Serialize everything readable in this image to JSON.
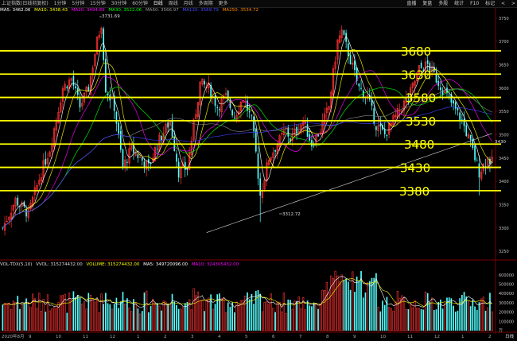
{
  "toolbar": {
    "title": "上证指数(日线前复权)",
    "periods": [
      "1分钟",
      "5分钟",
      "15分钟",
      "30分钟",
      "60分钟",
      "日线",
      "周线",
      "月线",
      "多周期",
      "更多"
    ],
    "active_period": "日线",
    "right_buttons": [
      "直播",
      "复盘",
      "多股",
      "统计",
      "F10",
      "标记"
    ],
    "window_controls": [
      "<",
      ">"
    ]
  },
  "legend": {
    "ma5": "MA5: 3462.06",
    "ma10": "MA10: 3438.43",
    "ma20": "MA20: 3494.89",
    "ma30": "MA30: 3522.06",
    "ma60": "MA60: 3566.97",
    "ma120": "MA120: 3569.79",
    "ma250": "MA250: 3534.72"
  },
  "vol_legend": {
    "name": "VOL-TDX(5,10)",
    "vvol": "VVOL: 315274432.00",
    "vol": "VOLUME: 315274432.00",
    "ma5": "MA5: 349720096.00",
    "ma10": "MA10: 324305432.00"
  },
  "price_annotations": {
    "high": "3731.69",
    "low": "3312.72"
  },
  "current_price_tag": "3430",
  "level_labels": [
    "3680",
    "3630",
    "3580",
    "3530",
    "3480",
    "3430",
    "3380"
  ],
  "price_axis": [
    "3750",
    "3700",
    "3650",
    "3600",
    "3550",
    "3500",
    "3450",
    "3400",
    "3350",
    "3300",
    "3250"
  ],
  "volume_axis": [
    "600000",
    "500000",
    "400000",
    "300000",
    "200000",
    "100000",
    "万"
  ],
  "date_axis": [
    "2020年8月",
    "9",
    "10",
    "11",
    "12",
    "1",
    "2",
    "3",
    "4",
    "5",
    "6",
    "7",
    "8",
    "9",
    "10",
    "11",
    "12",
    "1",
    "2"
  ],
  "bottom_right": "日线",
  "colors": {
    "up": "#ff3232",
    "down": "#54ffff",
    "levels": "#ffff00",
    "ma5": "#ffffff",
    "ma10": "#ffff00",
    "ma20": "#ff00ff",
    "ma30": "#00ff00",
    "ma60": "#888888",
    "ma120": "#4040ff",
    "ma250": "#ff8c00"
  },
  "chart_data": {
    "type": "candlestick",
    "horizontal_levels": [
      3680,
      3630,
      3580,
      3530,
      3480,
      3430,
      3380
    ],
    "price_range": [
      3240,
      3760
    ],
    "high": 3731.69,
    "low": 3312.72,
    "moving_averages": [
      "MA5",
      "MA10",
      "MA20",
      "MA30",
      "MA60",
      "MA120",
      "MA250"
    ]
  }
}
